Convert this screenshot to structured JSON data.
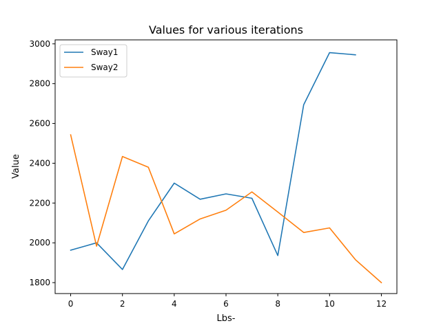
{
  "chart_data": {
    "type": "line",
    "title": "Values for various iterations",
    "xlabel": "Lbs-",
    "ylabel": "Value",
    "xlim": [
      -0.6,
      12.6
    ],
    "ylim": [
      1745,
      3020
    ],
    "xticks": [
      0,
      2,
      4,
      6,
      8,
      10,
      12
    ],
    "yticks": [
      1800,
      2000,
      2200,
      2400,
      2600,
      2800,
      3000
    ],
    "grid": false,
    "legend_position": "top-left",
    "series": [
      {
        "name": "Sway1",
        "color": "#1f77b4",
        "x": [
          0,
          1,
          2,
          3,
          4,
          5,
          6,
          7,
          8,
          9,
          10,
          11
        ],
        "values": [
          1963,
          2000,
          1866,
          2110,
          2300,
          2219,
          2246,
          2224,
          1936,
          2694,
          2956,
          2945
        ]
      },
      {
        "name": "Sway2",
        "color": "#ff7f0e",
        "x": [
          0,
          1,
          2,
          3,
          4,
          5,
          6,
          7,
          8,
          9,
          10,
          11,
          12
        ],
        "values": [
          2543,
          1983,
          2434,
          2380,
          2045,
          2120,
          2164,
          2256,
          2155,
          2052,
          2075,
          1915,
          1800
        ]
      }
    ]
  }
}
